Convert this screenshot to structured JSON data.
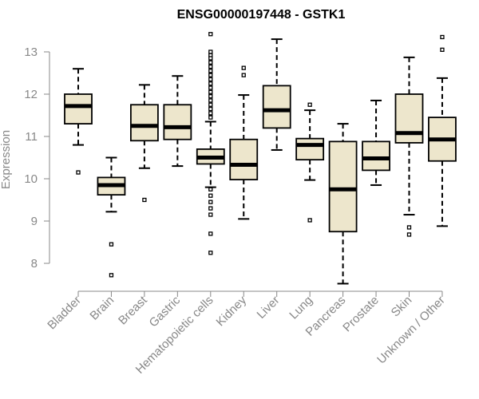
{
  "chart_data": {
    "type": "boxplot",
    "title": "ENSG00000197448 - GSTK1",
    "xlabel": "",
    "ylabel": "Expression",
    "ylim": [
      7.5,
      13.5
    ],
    "yticks": [
      8,
      9,
      10,
      11,
      12,
      13
    ],
    "categories": [
      "Bladder",
      "Brain",
      "Breast",
      "Gastric",
      "Hematopoietic cells",
      "Kidney",
      "Liver",
      "Lung",
      "Pancreas",
      "Prostate",
      "Skin",
      "Unknown / Other"
    ],
    "boxes": [
      {
        "name": "Bladder",
        "whisker_low": 10.8,
        "q1": 11.3,
        "median": 11.72,
        "q3": 12.0,
        "whisker_high": 12.6,
        "outliers": [
          10.15
        ]
      },
      {
        "name": "Brain",
        "whisker_low": 9.22,
        "q1": 9.62,
        "median": 9.85,
        "q3": 10.03,
        "whisker_high": 10.5,
        "outliers": [
          8.45,
          7.72
        ]
      },
      {
        "name": "Breast",
        "whisker_low": 10.25,
        "q1": 10.9,
        "median": 11.25,
        "q3": 11.75,
        "whisker_high": 12.22,
        "outliers": [
          9.5
        ]
      },
      {
        "name": "Gastric",
        "whisker_low": 10.3,
        "q1": 10.93,
        "median": 11.22,
        "q3": 11.75,
        "whisker_high": 12.43,
        "outliers": []
      },
      {
        "name": "Hematopoietic cells",
        "whisker_low": 9.8,
        "q1": 10.35,
        "median": 10.5,
        "q3": 10.7,
        "whisker_high": 11.35,
        "outliers": [
          13.42,
          13.0,
          12.92,
          12.85,
          12.75,
          12.65,
          12.55,
          12.45,
          12.35,
          12.25,
          12.15,
          12.05,
          11.95,
          11.85,
          11.75,
          11.65,
          11.55,
          11.45,
          9.75,
          9.6,
          9.45,
          9.3,
          9.15,
          8.7,
          8.25
        ]
      },
      {
        "name": "Kidney",
        "whisker_low": 9.05,
        "q1": 9.98,
        "median": 10.33,
        "q3": 10.93,
        "whisker_high": 11.98,
        "outliers": [
          12.62,
          12.45
        ]
      },
      {
        "name": "Liver",
        "whisker_low": 10.68,
        "q1": 11.2,
        "median": 11.62,
        "q3": 12.2,
        "whisker_high": 13.3,
        "outliers": []
      },
      {
        "name": "Lung",
        "whisker_low": 9.97,
        "q1": 10.45,
        "median": 10.8,
        "q3": 10.95,
        "whisker_high": 11.62,
        "outliers": [
          11.75,
          9.02
        ]
      },
      {
        "name": "Pancreas",
        "whisker_low": 7.52,
        "q1": 8.75,
        "median": 9.75,
        "q3": 10.88,
        "whisker_high": 11.3,
        "outliers": []
      },
      {
        "name": "Prostate",
        "whisker_low": 9.85,
        "q1": 10.2,
        "median": 10.48,
        "q3": 10.88,
        "whisker_high": 11.85,
        "outliers": []
      },
      {
        "name": "Skin",
        "whisker_low": 9.15,
        "q1": 10.85,
        "median": 11.08,
        "q3": 12.0,
        "whisker_high": 12.87,
        "outliers": [
          8.85,
          8.68
        ]
      },
      {
        "name": "Unknown / Other",
        "whisker_low": 8.88,
        "q1": 10.42,
        "median": 10.93,
        "q3": 11.45,
        "whisker_high": 12.38,
        "outliers": [
          13.35,
          13.05
        ]
      }
    ],
    "colors": {
      "box_fill": "#EDE6CC",
      "stroke": "#000000",
      "axis": "#888888",
      "text": "#888888"
    }
  }
}
